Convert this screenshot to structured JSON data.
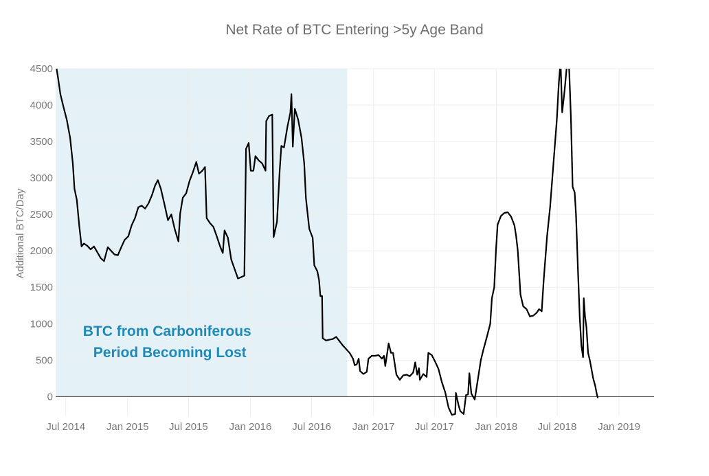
{
  "chart_data": {
    "type": "line",
    "title": "Net Rate of BTC Entering >5y Age Band",
    "xlabel": "",
    "ylabel": "Additional BTC/Day",
    "ylim": [
      -270,
      4500
    ],
    "yticks": [
      0,
      500,
      1000,
      1500,
      2000,
      2500,
      3000,
      3500,
      4000,
      4500
    ],
    "xlim": [
      "2014-06-01",
      "2019-04-15"
    ],
    "xticks": [
      {
        "date": "2014-07-01",
        "label": "Jul 2014"
      },
      {
        "date": "2015-01-01",
        "label": "Jan 2015"
      },
      {
        "date": "2015-07-01",
        "label": "Jul 2015"
      },
      {
        "date": "2016-01-01",
        "label": "Jan 2016"
      },
      {
        "date": "2016-07-01",
        "label": "Jul 2016"
      },
      {
        "date": "2017-01-01",
        "label": "Jan 2017"
      },
      {
        "date": "2017-07-01",
        "label": "Jul 2017"
      },
      {
        "date": "2018-01-01",
        "label": "Jan 2018"
      },
      {
        "date": "2018-07-01",
        "label": "Jul 2018"
      },
      {
        "date": "2019-01-01",
        "label": "Jan 2019"
      }
    ],
    "grid": true,
    "line_color": "#000000",
    "highlight": {
      "start": "2014-06-01",
      "end": "2016-10-15",
      "color": "#e4f1f7",
      "label_line1": "BTC from Carboniferous",
      "label_line2": "Period Becoming Lost",
      "label_color": "#1f8ab5"
    },
    "series": [
      {
        "name": "",
        "points": [
          [
            "2014-06-01",
            4580
          ],
          [
            "2014-06-08",
            4380
          ],
          [
            "2014-06-15",
            4150
          ],
          [
            "2014-06-24",
            3980
          ],
          [
            "2014-07-04",
            3800
          ],
          [
            "2014-07-14",
            3550
          ],
          [
            "2014-07-22",
            3200
          ],
          [
            "2014-07-27",
            2850
          ],
          [
            "2014-08-03",
            2700
          ],
          [
            "2014-08-10",
            2350
          ],
          [
            "2014-08-17",
            2060
          ],
          [
            "2014-08-24",
            2100
          ],
          [
            "2014-09-03",
            2070
          ],
          [
            "2014-09-13",
            2020
          ],
          [
            "2014-09-23",
            2060
          ],
          [
            "2014-10-03",
            1980
          ],
          [
            "2014-10-13",
            1900
          ],
          [
            "2014-10-23",
            1860
          ],
          [
            "2014-11-03",
            2050
          ],
          [
            "2014-11-13",
            2000
          ],
          [
            "2014-11-23",
            1950
          ],
          [
            "2014-12-03",
            1940
          ],
          [
            "2014-12-13",
            2050
          ],
          [
            "2014-12-23",
            2150
          ],
          [
            "2015-01-03",
            2200
          ],
          [
            "2015-01-13",
            2350
          ],
          [
            "2015-01-23",
            2450
          ],
          [
            "2015-02-02",
            2600
          ],
          [
            "2015-02-12",
            2620
          ],
          [
            "2015-02-22",
            2580
          ],
          [
            "2015-03-04",
            2650
          ],
          [
            "2015-03-14",
            2760
          ],
          [
            "2015-03-24",
            2900
          ],
          [
            "2015-04-01",
            2970
          ],
          [
            "2015-04-10",
            2850
          ],
          [
            "2015-04-20",
            2650
          ],
          [
            "2015-05-01",
            2420
          ],
          [
            "2015-05-11",
            2500
          ],
          [
            "2015-05-21",
            2300
          ],
          [
            "2015-06-01",
            2130
          ],
          [
            "2015-06-06",
            2510
          ],
          [
            "2015-06-14",
            2730
          ],
          [
            "2015-06-24",
            2790
          ],
          [
            "2015-07-04",
            2960
          ],
          [
            "2015-07-14",
            3080
          ],
          [
            "2015-07-24",
            3220
          ],
          [
            "2015-08-01",
            3060
          ],
          [
            "2015-08-11",
            3100
          ],
          [
            "2015-08-19",
            3150
          ],
          [
            "2015-08-24",
            2450
          ],
          [
            "2015-09-03",
            2380
          ],
          [
            "2015-09-13",
            2330
          ],
          [
            "2015-09-23",
            2200
          ],
          [
            "2015-10-03",
            2060
          ],
          [
            "2015-10-11",
            1970
          ],
          [
            "2015-10-16",
            2280
          ],
          [
            "2015-10-26",
            2180
          ],
          [
            "2015-11-05",
            1880
          ],
          [
            "2015-11-15",
            1750
          ],
          [
            "2015-11-25",
            1620
          ],
          [
            "2015-12-05",
            1640
          ],
          [
            "2015-12-14",
            1660
          ],
          [
            "2015-12-19",
            3400
          ],
          [
            "2015-12-27",
            3480
          ],
          [
            "2016-01-02",
            3100
          ],
          [
            "2016-01-10",
            3100
          ],
          [
            "2016-01-16",
            3300
          ],
          [
            "2016-01-26",
            3240
          ],
          [
            "2016-02-05",
            3200
          ],
          [
            "2016-02-15",
            3100
          ],
          [
            "2016-02-17",
            3780
          ],
          [
            "2016-02-25",
            3850
          ],
          [
            "2016-03-06",
            3870
          ],
          [
            "2016-03-10",
            2190
          ],
          [
            "2016-03-20",
            2400
          ],
          [
            "2016-03-28",
            3100
          ],
          [
            "2016-04-02",
            3440
          ],
          [
            "2016-04-10",
            3420
          ],
          [
            "2016-04-20",
            3700
          ],
          [
            "2016-04-29",
            3900
          ],
          [
            "2016-05-02",
            4150
          ],
          [
            "2016-05-06",
            3430
          ],
          [
            "2016-05-12",
            3950
          ],
          [
            "2016-05-22",
            3800
          ],
          [
            "2016-06-01",
            3550
          ],
          [
            "2016-06-09",
            3200
          ],
          [
            "2016-06-14",
            2720
          ],
          [
            "2016-06-24",
            2300
          ],
          [
            "2016-07-04",
            2180
          ],
          [
            "2016-07-09",
            1800
          ],
          [
            "2016-07-18",
            1720
          ],
          [
            "2016-07-23",
            1600
          ],
          [
            "2016-07-27",
            1380
          ],
          [
            "2016-08-01",
            1380
          ],
          [
            "2016-08-03",
            800
          ],
          [
            "2016-08-13",
            770
          ],
          [
            "2016-08-23",
            780
          ],
          [
            "2016-09-02",
            790
          ],
          [
            "2016-09-12",
            820
          ],
          [
            "2016-09-22",
            760
          ],
          [
            "2016-10-02",
            700
          ],
          [
            "2016-10-12",
            650
          ],
          [
            "2016-10-22",
            600
          ],
          [
            "2016-11-01",
            520
          ],
          [
            "2016-11-06",
            430
          ],
          [
            "2016-11-12",
            440
          ],
          [
            "2016-11-18",
            520
          ],
          [
            "2016-11-22",
            350
          ],
          [
            "2016-12-02",
            310
          ],
          [
            "2016-12-12",
            340
          ],
          [
            "2016-12-17",
            520
          ],
          [
            "2016-12-27",
            560
          ],
          [
            "2017-01-06",
            560
          ],
          [
            "2017-01-16",
            570
          ],
          [
            "2017-01-26",
            520
          ],
          [
            "2017-02-01",
            560
          ],
          [
            "2017-02-05",
            420
          ],
          [
            "2017-02-15",
            730
          ],
          [
            "2017-02-22",
            600
          ],
          [
            "2017-02-28",
            600
          ],
          [
            "2017-03-10",
            300
          ],
          [
            "2017-03-20",
            230
          ],
          [
            "2017-03-30",
            290
          ],
          [
            "2017-04-09",
            300
          ],
          [
            "2017-04-19",
            280
          ],
          [
            "2017-04-29",
            330
          ],
          [
            "2017-05-05",
            470
          ],
          [
            "2017-05-11",
            300
          ],
          [
            "2017-05-16",
            390
          ],
          [
            "2017-05-19",
            230
          ],
          [
            "2017-05-29",
            310
          ],
          [
            "2017-06-08",
            270
          ],
          [
            "2017-06-13",
            600
          ],
          [
            "2017-06-23",
            570
          ],
          [
            "2017-07-03",
            480
          ],
          [
            "2017-07-13",
            380
          ],
          [
            "2017-07-23",
            200
          ],
          [
            "2017-08-02",
            60
          ],
          [
            "2017-08-12",
            -150
          ],
          [
            "2017-08-22",
            -250
          ],
          [
            "2017-09-01",
            -240
          ],
          [
            "2017-09-03",
            50
          ],
          [
            "2017-09-11",
            -120
          ],
          [
            "2017-09-16",
            -200
          ],
          [
            "2017-09-26",
            -240
          ],
          [
            "2017-10-03",
            20
          ],
          [
            "2017-10-09",
            30
          ],
          [
            "2017-10-13",
            320
          ],
          [
            "2017-10-19",
            40
          ],
          [
            "2017-10-29",
            -40
          ],
          [
            "2017-11-06",
            200
          ],
          [
            "2017-11-16",
            500
          ],
          [
            "2017-11-24",
            650
          ],
          [
            "2017-12-04",
            820
          ],
          [
            "2017-12-14",
            1000
          ],
          [
            "2017-12-19",
            1350
          ],
          [
            "2017-12-26",
            1500
          ],
          [
            "2017-12-31",
            2000
          ],
          [
            "2018-01-05",
            2360
          ],
          [
            "2018-01-15",
            2480
          ],
          [
            "2018-01-25",
            2520
          ],
          [
            "2018-02-04",
            2530
          ],
          [
            "2018-02-14",
            2470
          ],
          [
            "2018-02-24",
            2350
          ],
          [
            "2018-03-01",
            2200
          ],
          [
            "2018-03-06",
            2000
          ],
          [
            "2018-03-14",
            1400
          ],
          [
            "2018-03-22",
            1240
          ],
          [
            "2018-04-01",
            1200
          ],
          [
            "2018-04-11",
            1100
          ],
          [
            "2018-04-21",
            1110
          ],
          [
            "2018-05-01",
            1150
          ],
          [
            "2018-05-08",
            1200
          ],
          [
            "2018-05-16",
            1170
          ],
          [
            "2018-05-22",
            1600
          ],
          [
            "2018-06-01",
            2200
          ],
          [
            "2018-06-10",
            2600
          ],
          [
            "2018-06-20",
            3200
          ],
          [
            "2018-06-30",
            3800
          ],
          [
            "2018-07-06",
            4300
          ],
          [
            "2018-07-11",
            4600
          ],
          [
            "2018-07-16",
            3900
          ],
          [
            "2018-07-23",
            4200
          ],
          [
            "2018-07-29",
            4500
          ],
          [
            "2018-08-03",
            4800
          ],
          [
            "2018-08-08",
            4200
          ],
          [
            "2018-08-11",
            3800
          ],
          [
            "2018-08-16",
            2880
          ],
          [
            "2018-08-22",
            2800
          ],
          [
            "2018-08-26",
            2500
          ],
          [
            "2018-09-01",
            1700
          ],
          [
            "2018-09-06",
            1100
          ],
          [
            "2018-09-11",
            700
          ],
          [
            "2018-09-16",
            540
          ],
          [
            "2018-09-18",
            1350
          ],
          [
            "2018-09-22",
            1100
          ],
          [
            "2018-09-26",
            950
          ],
          [
            "2018-10-01",
            600
          ],
          [
            "2018-10-06",
            500
          ],
          [
            "2018-10-11",
            380
          ],
          [
            "2018-10-16",
            250
          ],
          [
            "2018-10-22",
            150
          ],
          [
            "2018-10-27",
            30
          ],
          [
            "2018-10-30",
            -20
          ]
        ]
      }
    ]
  }
}
